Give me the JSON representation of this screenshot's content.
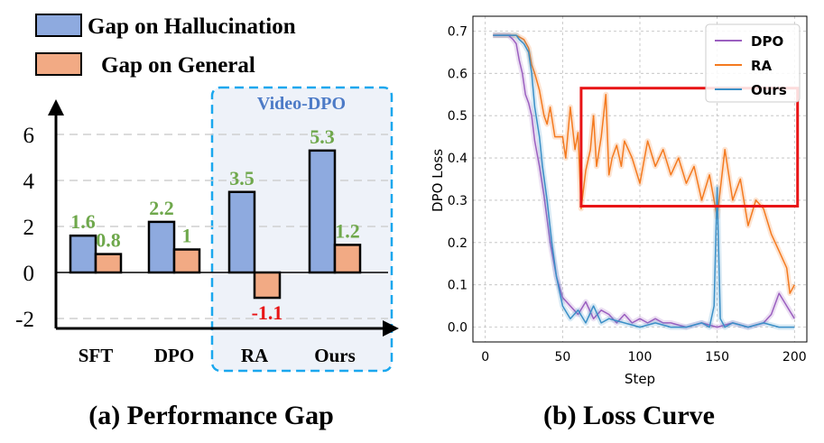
{
  "chart_data": [
    {
      "type": "bar",
      "title": "(a) Performance Gap",
      "categories": [
        "SFT",
        "DPO",
        "RA",
        "Ours"
      ],
      "series": [
        {
          "name": "Gap on Hallucination",
          "values": [
            1.6,
            2.2,
            3.5,
            5.3
          ],
          "labels": [
            "1.6",
            "2.2",
            "3.5",
            "5.3"
          ],
          "color": "#8eaadf"
        },
        {
          "name": "Gap on General",
          "values": [
            0.8,
            1,
            -1.1,
            1.2
          ],
          "labels": [
            "0.8",
            "1",
            "-1.1",
            "1.2"
          ],
          "color": "#f2aa84"
        }
      ],
      "yticks": [
        "-2",
        "0",
        "2",
        "4",
        "6"
      ],
      "ylim": [
        -2.4,
        7.2
      ],
      "grid_values": [
        -2,
        2,
        4,
        6
      ],
      "label_colors": {
        "positive": "#6fa84c",
        "negative": "#e81416"
      },
      "highlight_group": {
        "label": "Video-DPO",
        "categories": [
          "RA",
          "Ours"
        ],
        "border": "#1aa7ee",
        "fill": "#eef2f9"
      },
      "legend_position": "top-left"
    },
    {
      "type": "line",
      "title": "(b) Loss Curve",
      "xlabel": "Step",
      "ylabel": "DPO Loss",
      "xlim": [
        -8,
        208
      ],
      "ylim": [
        -0.035,
        0.735
      ],
      "xticks": [
        "0",
        "50",
        "100",
        "150",
        "200"
      ],
      "yticks": [
        "0.0",
        "0.1",
        "0.2",
        "0.3",
        "0.4",
        "0.5",
        "0.6",
        "0.7"
      ],
      "grid": true,
      "legend_position": "top-right",
      "highlight_box": {
        "x": [
          62,
          202
        ],
        "y": [
          0.286,
          0.565
        ],
        "color": "#e81416"
      },
      "series": [
        {
          "name": "DPO",
          "color": "#9b5fc0",
          "x": [
            5,
            10,
            15,
            18,
            20,
            22,
            24,
            26,
            28,
            30,
            32,
            35,
            38,
            42,
            46,
            50,
            55,
            60,
            65,
            70,
            75,
            80,
            85,
            90,
            95,
            100,
            105,
            110,
            115,
            120,
            130,
            140,
            150,
            160,
            170,
            180,
            185,
            190,
            195,
            200
          ],
          "y": [
            0.69,
            0.69,
            0.69,
            0.68,
            0.67,
            0.63,
            0.6,
            0.55,
            0.53,
            0.5,
            0.44,
            0.38,
            0.31,
            0.2,
            0.12,
            0.07,
            0.05,
            0.03,
            0.06,
            0.02,
            0.04,
            0.03,
            0.01,
            0.03,
            0.01,
            0.02,
            0.01,
            0.02,
            0.01,
            0.01,
            0.0,
            0.01,
            0.0,
            0.01,
            0.0,
            0.01,
            0.03,
            0.08,
            0.05,
            0.02
          ]
        },
        {
          "name": "RA",
          "color": "#f47a1f",
          "x": [
            5,
            10,
            15,
            20,
            25,
            28,
            30,
            32,
            35,
            38,
            40,
            42,
            45,
            50,
            52,
            55,
            58,
            60,
            62,
            65,
            68,
            70,
            72,
            75,
            78,
            80,
            82,
            85,
            88,
            90,
            95,
            100,
            105,
            110,
            115,
            120,
            125,
            130,
            135,
            140,
            145,
            150,
            155,
            160,
            165,
            170,
            175,
            180,
            185,
            190,
            195,
            197,
            200
          ],
          "y": [
            0.69,
            0.69,
            0.69,
            0.69,
            0.68,
            0.66,
            0.62,
            0.6,
            0.56,
            0.5,
            0.48,
            0.52,
            0.45,
            0.45,
            0.4,
            0.52,
            0.42,
            0.46,
            0.28,
            0.37,
            0.42,
            0.5,
            0.38,
            0.45,
            0.55,
            0.36,
            0.4,
            0.43,
            0.38,
            0.44,
            0.4,
            0.34,
            0.44,
            0.38,
            0.42,
            0.36,
            0.4,
            0.34,
            0.38,
            0.3,
            0.36,
            0.26,
            0.42,
            0.3,
            0.35,
            0.24,
            0.3,
            0.28,
            0.22,
            0.18,
            0.14,
            0.08,
            0.1
          ]
        },
        {
          "name": "Ours",
          "color": "#3a8fc7",
          "x": [
            5,
            10,
            15,
            20,
            22,
            25,
            28,
            30,
            32,
            35,
            37,
            40,
            43,
            46,
            50,
            55,
            60,
            65,
            70,
            75,
            80,
            90,
            100,
            110,
            120,
            130,
            140,
            145,
            148,
            150,
            152,
            155,
            160,
            170,
            180,
            190,
            200
          ],
          "y": [
            0.69,
            0.69,
            0.69,
            0.69,
            0.68,
            0.67,
            0.65,
            0.6,
            0.52,
            0.45,
            0.38,
            0.3,
            0.2,
            0.12,
            0.05,
            0.02,
            0.04,
            0.01,
            0.05,
            0.01,
            0.02,
            0.01,
            0.0,
            0.01,
            0.0,
            0.0,
            0.01,
            0.0,
            0.05,
            0.33,
            0.02,
            0.0,
            0.01,
            0.0,
            0.01,
            0.0,
            0.0
          ]
        }
      ]
    }
  ]
}
